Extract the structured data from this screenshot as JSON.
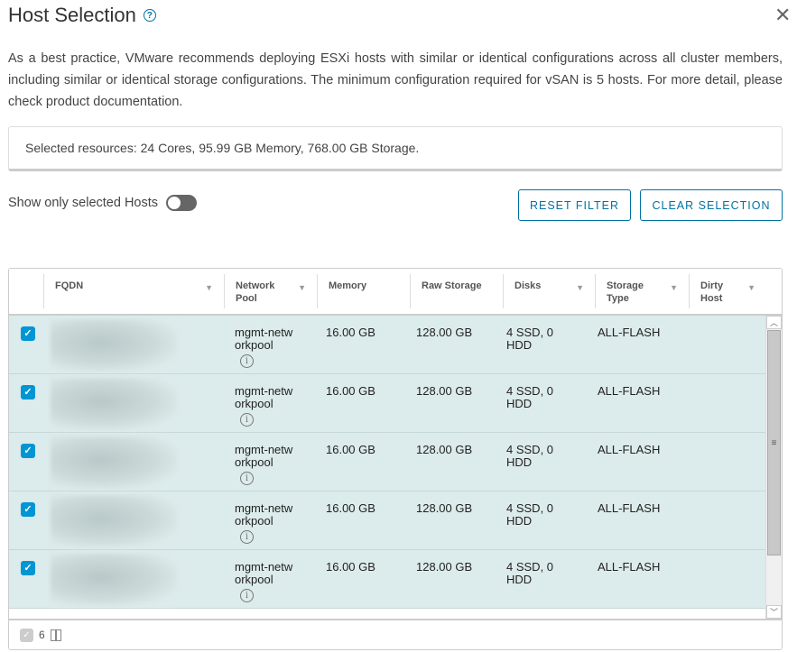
{
  "dialog": {
    "title": "Host Selection",
    "help_icon": "help-circle-icon",
    "close_icon": "close-icon"
  },
  "description": "As a best practice, VMware recommends deploying ESXi hosts with similar or identical configurations across all cluster members, including similar or identical storage configurations. The minimum configuration required for vSAN is 5 hosts. For more detail, please check product documentation.",
  "selected_resources": "Selected resources: 24 Cores, 95.99 GB Memory, 768.00 GB Storage.",
  "toggle": {
    "label": "Show only selected Hosts",
    "on": false
  },
  "buttons": {
    "reset_filter": "RESET FILTER",
    "clear_selection": "CLEAR SELECTION"
  },
  "table": {
    "columns": [
      "FQDN",
      "Network Pool",
      "Memory",
      "Raw Storage",
      "Disks",
      "Storage Type",
      "Dirty Host"
    ],
    "rows": [
      {
        "selected": true,
        "fqdn": "",
        "network_pool": "mgmt-networkpool",
        "memory": "16.00 GB",
        "raw_storage": "128.00 GB",
        "disks": "4 SSD, 0 HDD",
        "storage_type": "ALL-FLASH",
        "dirty_host": ""
      },
      {
        "selected": true,
        "fqdn": "",
        "network_pool": "mgmt-networkpool",
        "memory": "16.00 GB",
        "raw_storage": "128.00 GB",
        "disks": "4 SSD, 0 HDD",
        "storage_type": "ALL-FLASH",
        "dirty_host": ""
      },
      {
        "selected": true,
        "fqdn": "",
        "network_pool": "mgmt-networkpool",
        "memory": "16.00 GB",
        "raw_storage": "128.00 GB",
        "disks": "4 SSD, 0 HDD",
        "storage_type": "ALL-FLASH",
        "dirty_host": ""
      },
      {
        "selected": true,
        "fqdn": "",
        "network_pool": "mgmt-networkpool",
        "memory": "16.00 GB",
        "raw_storage": "128.00 GB",
        "disks": "4 SSD, 0 HDD",
        "storage_type": "ALL-FLASH",
        "dirty_host": ""
      },
      {
        "selected": true,
        "fqdn": "",
        "network_pool": "mgmt-networkpool",
        "memory": "16.00 GB",
        "raw_storage": "128.00 GB",
        "disks": "4 SSD, 0 HDD",
        "storage_type": "ALL-FLASH",
        "dirty_host": ""
      }
    ],
    "footer": {
      "selected_count": "6"
    }
  },
  "colors": {
    "accent": "#0072a3",
    "checkbox": "#0095d3",
    "selected_row": "#dcebeb"
  }
}
